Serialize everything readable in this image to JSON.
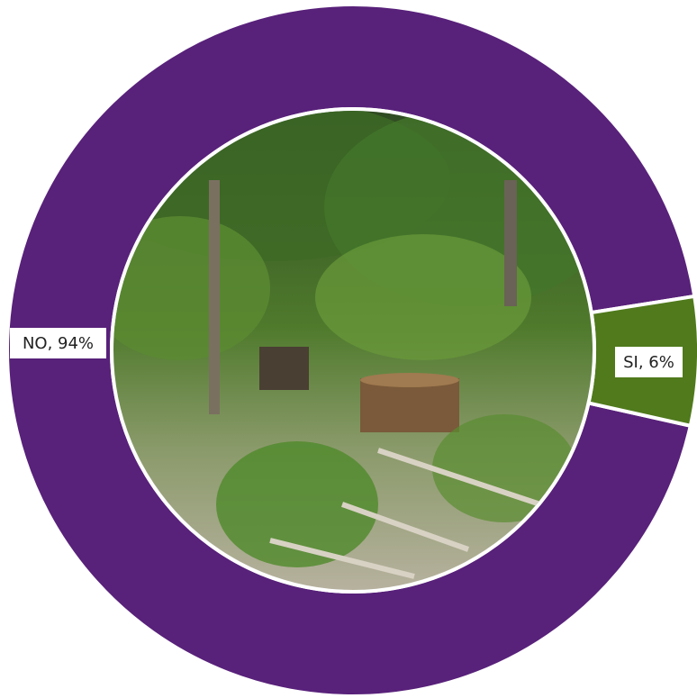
{
  "chart_data": {
    "type": "donut",
    "values": [
      94,
      6
    ],
    "value_labels": [
      "NO, 94%",
      "SI, 6%"
    ],
    "colors": [
      "#58217a",
      "#507a1c"
    ]
  }
}
